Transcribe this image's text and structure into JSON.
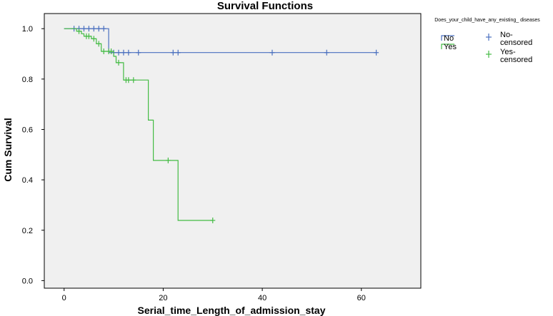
{
  "chart_data": {
    "type": "line",
    "title": "Survival Functions",
    "xlabel": "Serial_time_Length_of_admission_stay",
    "ylabel": "Cum Survival",
    "xlim": [
      -4,
      72
    ],
    "ylim": [
      -0.03,
      1.06
    ],
    "xticks": [
      0,
      20,
      40,
      60
    ],
    "yticks": [
      0.0,
      0.2,
      0.4,
      0.6,
      0.8,
      1.0
    ],
    "ytick_labels": [
      "0.0",
      "0.2",
      "0.4",
      "0.6",
      "0.8",
      "1.0"
    ],
    "legend": {
      "title": "Does_your_child_have_any_existing_ diseases",
      "entries": [
        {
          "label": "No",
          "kind": "step",
          "series": "No"
        },
        {
          "label": "Yes",
          "kind": "step",
          "series": "Yes"
        },
        {
          "label": "No-censored",
          "kind": "censor",
          "series": "No"
        },
        {
          "label": "Yes-censored",
          "kind": "censor",
          "series": "Yes"
        }
      ]
    },
    "series": [
      {
        "name": "No",
        "color": "#4a6fbf",
        "steps": [
          [
            0,
            1.0
          ],
          [
            9,
            1.0
          ],
          [
            9,
            0.905
          ],
          [
            63,
            0.905
          ]
        ],
        "censored": [
          [
            2,
            1.0
          ],
          [
            3,
            1.0
          ],
          [
            4,
            1.0
          ],
          [
            5,
            1.0
          ],
          [
            6,
            1.0
          ],
          [
            7,
            1.0
          ],
          [
            8,
            1.0
          ],
          [
            10,
            0.905
          ],
          [
            11,
            0.905
          ],
          [
            12,
            0.905
          ],
          [
            13,
            0.905
          ],
          [
            15,
            0.905
          ],
          [
            22,
            0.905
          ],
          [
            23,
            0.905
          ],
          [
            42,
            0.905
          ],
          [
            53,
            0.905
          ],
          [
            63,
            0.905
          ]
        ]
      },
      {
        "name": "Yes",
        "color": "#44bb44",
        "steps": [
          [
            0,
            1.0
          ],
          [
            2.5,
            1.0
          ],
          [
            2.5,
            0.99
          ],
          [
            3.5,
            0.99
          ],
          [
            3.5,
            0.98
          ],
          [
            4,
            0.98
          ],
          [
            4,
            0.97
          ],
          [
            5.5,
            0.97
          ],
          [
            5.5,
            0.96
          ],
          [
            6.5,
            0.96
          ],
          [
            6.5,
            0.94
          ],
          [
            7.5,
            0.94
          ],
          [
            7.5,
            0.91
          ],
          [
            10,
            0.91
          ],
          [
            10,
            0.89
          ],
          [
            10.5,
            0.89
          ],
          [
            10.5,
            0.865
          ],
          [
            12,
            0.865
          ],
          [
            12,
            0.796
          ],
          [
            17,
            0.796
          ],
          [
            17,
            0.637
          ],
          [
            18,
            0.637
          ],
          [
            18,
            0.477
          ],
          [
            23,
            0.477
          ],
          [
            23,
            0.239
          ],
          [
            30,
            0.239
          ]
        ],
        "censored": [
          [
            3,
            0.99
          ],
          [
            4.5,
            0.97
          ],
          [
            5,
            0.97
          ],
          [
            6,
            0.96
          ],
          [
            7,
            0.94
          ],
          [
            8,
            0.91
          ],
          [
            9,
            0.91
          ],
          [
            9.5,
            0.91
          ],
          [
            11,
            0.865
          ],
          [
            12.5,
            0.796
          ],
          [
            13,
            0.796
          ],
          [
            14,
            0.796
          ],
          [
            21,
            0.477
          ],
          [
            30,
            0.239
          ]
        ]
      }
    ]
  }
}
